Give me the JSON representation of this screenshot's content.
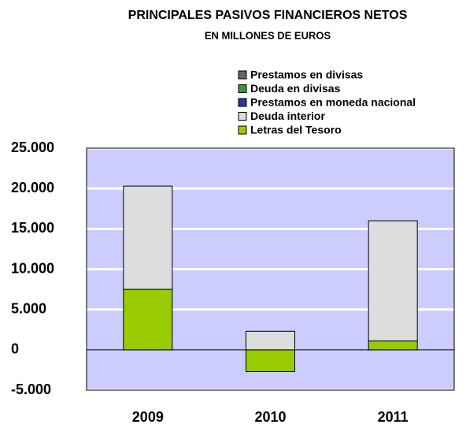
{
  "chart_data": {
    "type": "bar",
    "stacked": true,
    "title": "PRINCIPALES PASIVOS FINANCIEROS NETOS",
    "subtitle": "EN MILLONES DE EUROS",
    "categories": [
      "2009",
      "2010",
      "2011"
    ],
    "series": [
      {
        "name": "Letras del  Tesoro",
        "color": "#99cc00",
        "values": [
          7500,
          -2700,
          1100
        ]
      },
      {
        "name": "Deuda interior",
        "color": "#dddddd",
        "values": [
          12800,
          2300,
          14900
        ]
      },
      {
        "name": "Prestamos en moneda nacional",
        "color": "#3333aa",
        "values": [
          0,
          0,
          0
        ]
      },
      {
        "name": "Deuda en divisas",
        "color": "#339933",
        "values": [
          0,
          0,
          0
        ]
      },
      {
        "name": "Prestamos en divisas",
        "color": "#666666",
        "values": [
          0,
          0,
          0
        ]
      }
    ],
    "ylim": [
      -5000,
      25000
    ],
    "yticks": [
      {
        "value": -5000,
        "label": "-5.000"
      },
      0,
      {
        "value": 5000,
        "label": "5.000"
      },
      {
        "value": 10000,
        "label": "10.000"
      },
      {
        "value": 15000,
        "label": "15.000"
      },
      {
        "value": 20000,
        "label": "20.000"
      },
      {
        "value": 25000,
        "label": "25.000"
      }
    ],
    "grid": true,
    "plot_background": "#ccccff",
    "legend": "top-right"
  }
}
